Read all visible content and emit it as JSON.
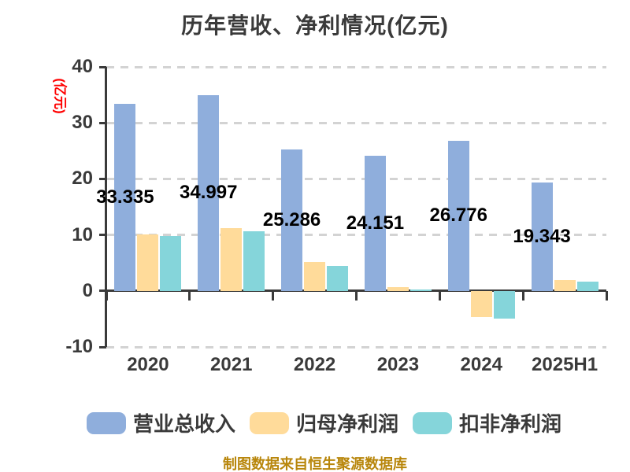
{
  "footer": "制图数据来自恒生聚源数据库",
  "colors": {
    "background": "#FFFFFF",
    "bar_blue": "#8FAEDC",
    "bar_orange": "#FFDB9A",
    "bar_teal": "#85D5DA",
    "axis": "#3A3A3A",
    "grid": "#D3D3D3",
    "title_text": "#3A3A3A",
    "ylabel_red": "#FF0000",
    "value_label": "#000000",
    "footer_text": "#B8860B"
  },
  "chart_data": {
    "type": "bar",
    "title": "历年营收、净利情况(亿元)",
    "ylabel": "(亿元)",
    "xlabel": "",
    "categories": [
      "2020",
      "2021",
      "2022",
      "2023",
      "2024",
      "2025H1"
    ],
    "series": [
      {
        "name": "营业总收入",
        "key": "revenue",
        "color": "#8FAEDC",
        "values": [
          33.335,
          34.997,
          25.286,
          24.151,
          26.776,
          19.343
        ],
        "labels": [
          "33.335",
          "34.997",
          "25.286",
          "24.151",
          "26.776",
          "19.343"
        ]
      },
      {
        "name": "归母净利润",
        "key": "net-profit",
        "color": "#FFDB9A",
        "values": [
          10.1,
          11.2,
          5.1,
          0.7,
          -4.6,
          1.9
        ]
      },
      {
        "name": "扣非净利润",
        "key": "deducted-net-profit",
        "color": "#85D5DA",
        "values": [
          9.8,
          10.7,
          4.5,
          0.3,
          -5.0,
          1.6
        ]
      }
    ],
    "yticks": [
      40,
      30,
      20,
      10,
      0,
      -10
    ],
    "ylim": [
      -10,
      40
    ],
    "grid": "horizontal-dashed",
    "legend_position": "bottom"
  }
}
